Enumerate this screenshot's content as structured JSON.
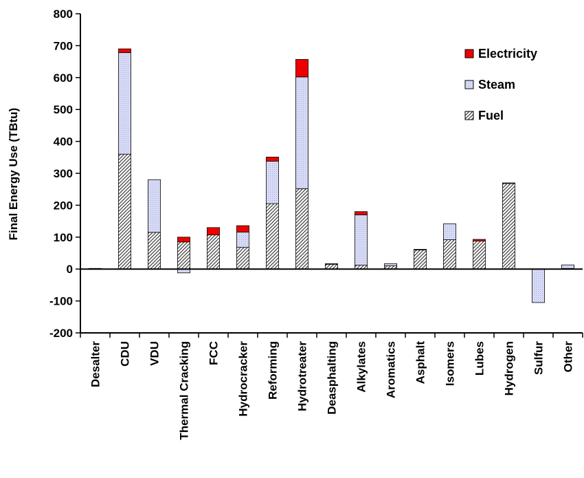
{
  "chart_data": {
    "type": "bar",
    "stacked": true,
    "ylabel": "Final Energy Use (TBtu)",
    "ylim": [
      -200,
      800
    ],
    "yticks": [
      -200,
      -100,
      0,
      100,
      200,
      300,
      400,
      500,
      600,
      700,
      800
    ],
    "grid": false,
    "legend_position": "top-right",
    "categories": [
      "Desalter",
      "CDU",
      "VDU",
      "Thermal Cracking",
      "FCC",
      "Hydrocracker",
      "Reforming",
      "Hydrotreater",
      "Deasphalting",
      "Alkylates",
      "Aromatics",
      "Asphalt",
      "Isomers",
      "Lubes",
      "Hydrogen",
      "Sulfur",
      "Other"
    ],
    "series": [
      {
        "name": "Fuel",
        "color": "#7f7f7f",
        "pattern": "diagonal-hatch",
        "values": [
          2,
          360,
          115,
          85,
          107,
          68,
          205,
          252,
          15,
          12,
          10,
          60,
          92,
          88,
          268,
          0,
          2
        ]
      },
      {
        "name": "Steam",
        "color": "#ccd0f2",
        "pattern": "dotted",
        "values": [
          0,
          318,
          165,
          -12,
          0,
          48,
          133,
          350,
          2,
          158,
          7,
          2,
          50,
          0,
          2,
          -105,
          11
        ]
      },
      {
        "name": "Electricity",
        "color": "#ee0000",
        "pattern": "solid",
        "values": [
          0,
          12,
          0,
          15,
          23,
          20,
          13,
          55,
          0,
          10,
          0,
          0,
          0,
          5,
          0,
          0,
          0
        ]
      }
    ]
  }
}
